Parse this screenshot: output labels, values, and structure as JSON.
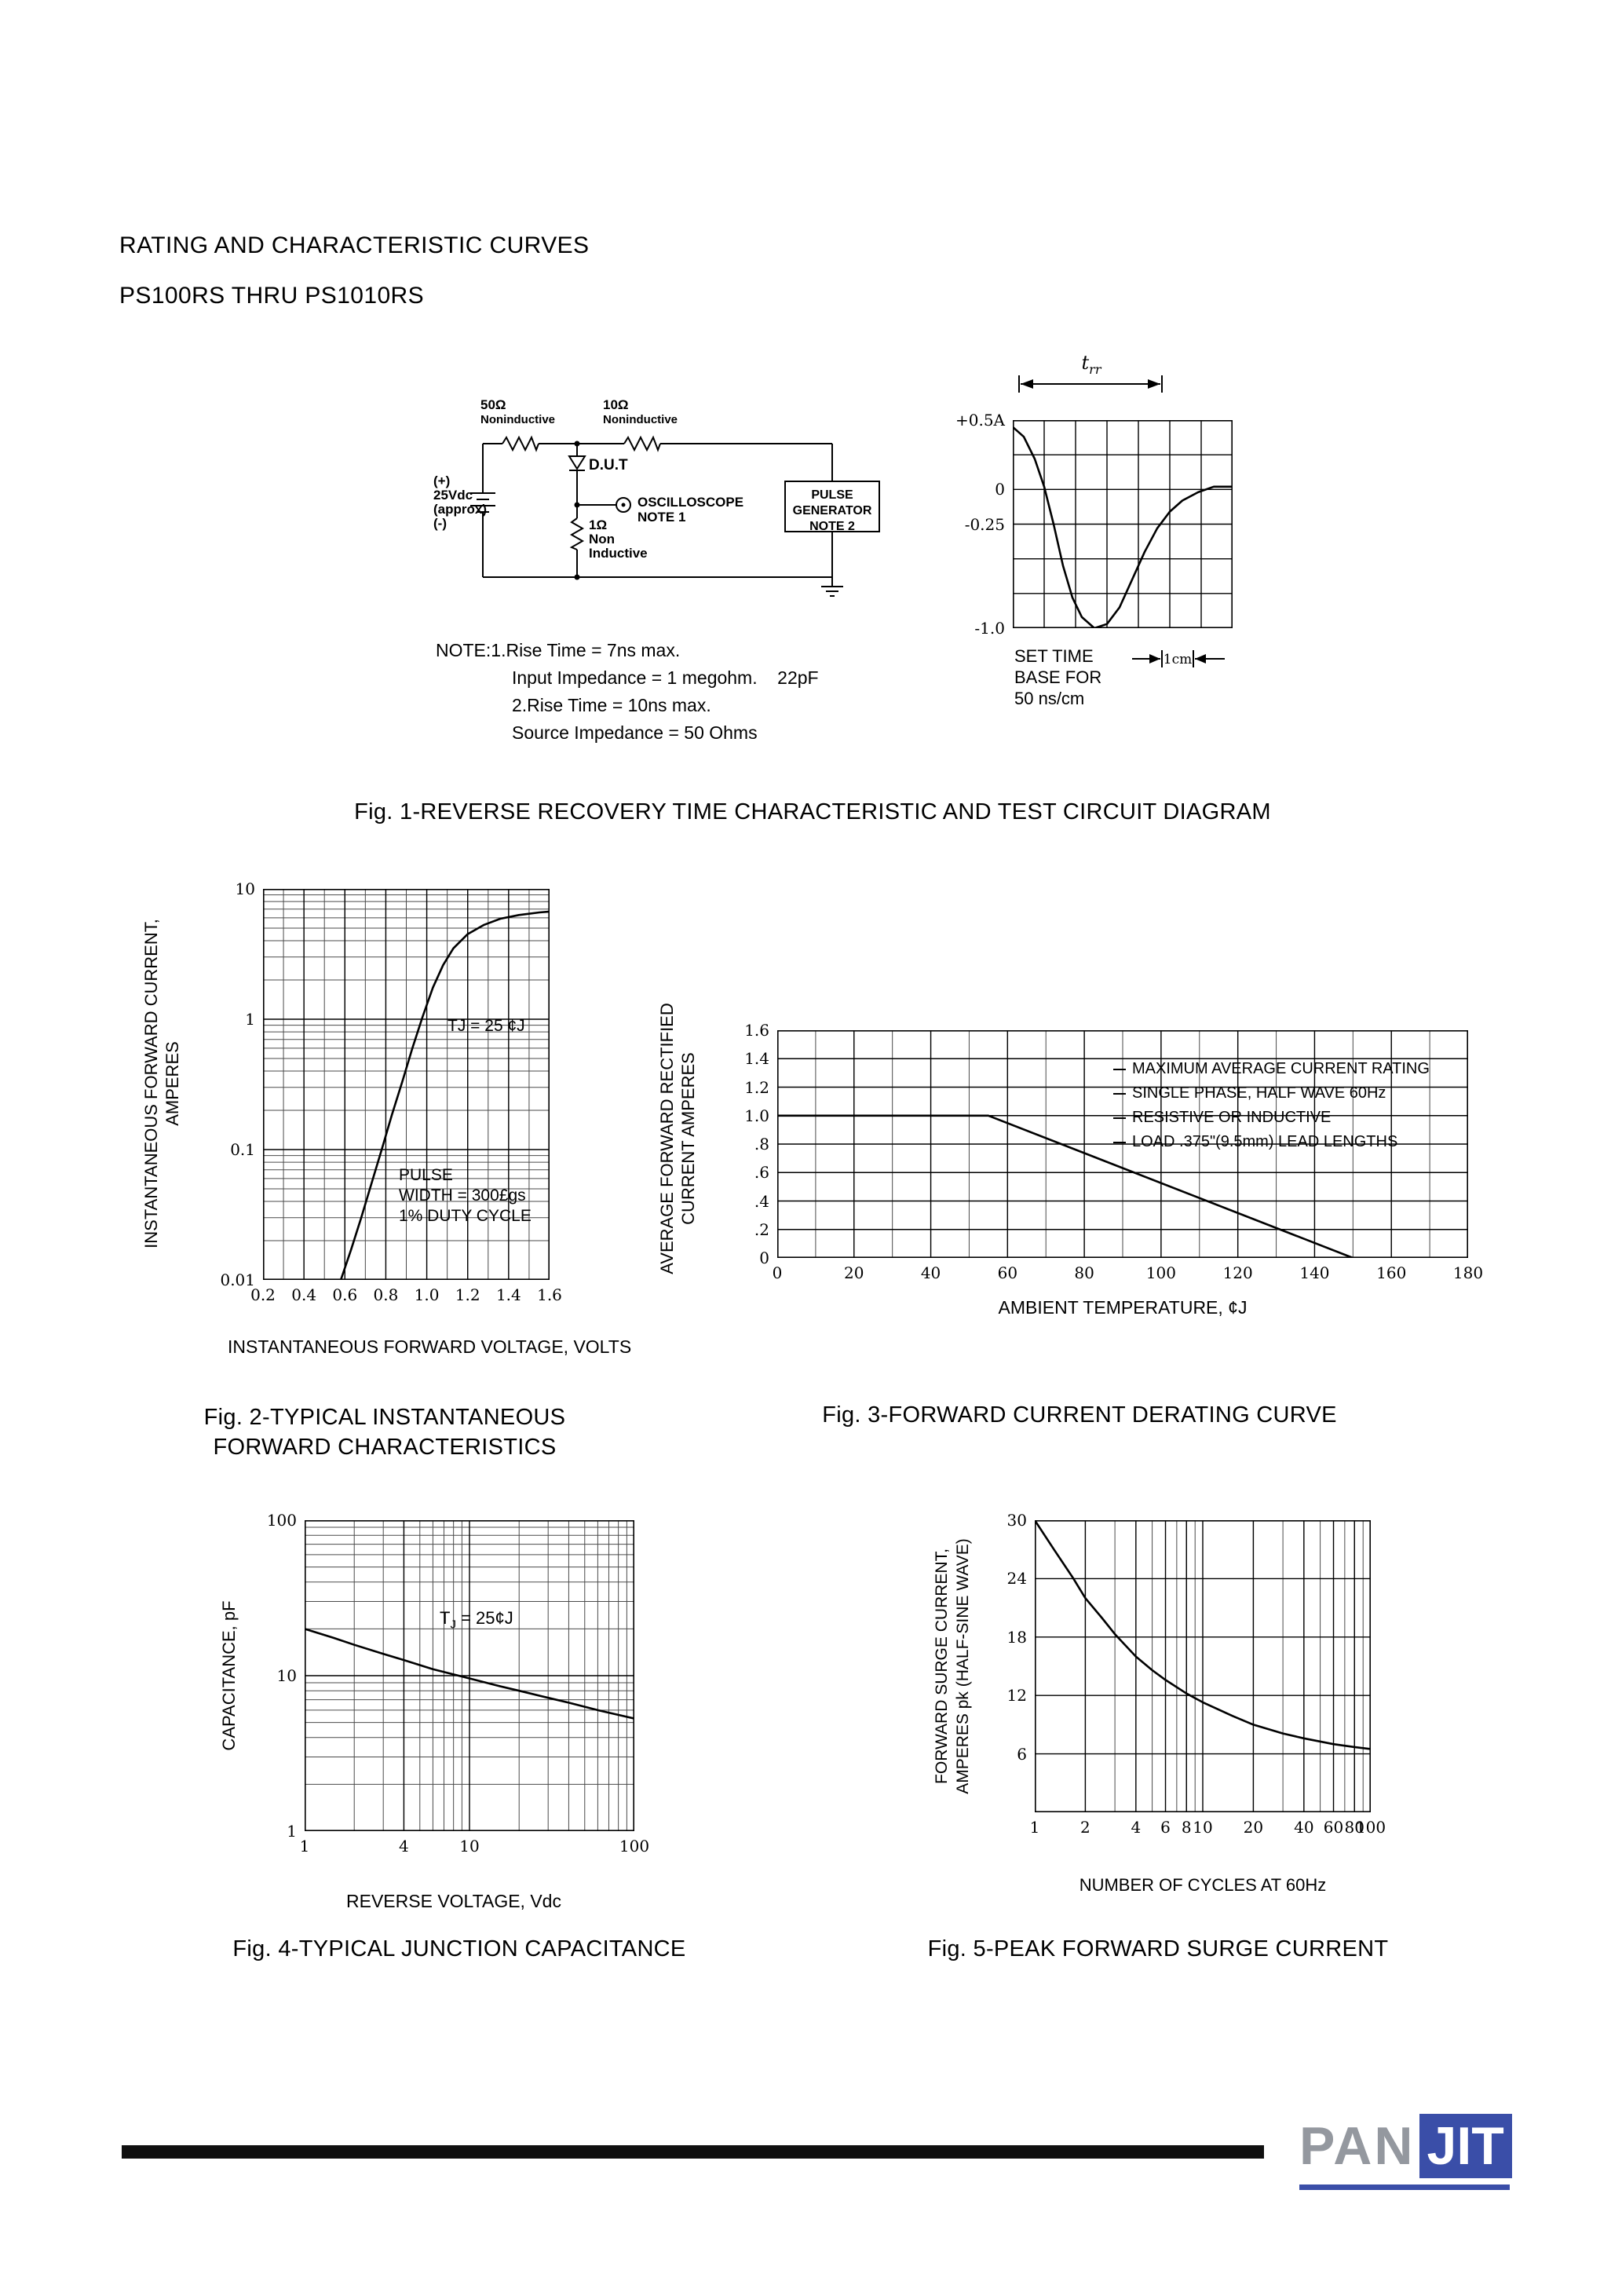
{
  "header": {
    "line1": "RATING AND CHARACTERISTIC CURVES",
    "line2": "PS100RS THRU PS1010RS"
  },
  "fig1": {
    "caption": "Fig. 1-REVERSE RECOVERY TIME CHARACTERISTIC AND TEST CIRCUIT DIAGRAM",
    "circuit": {
      "r50_value": "50Ω",
      "r50_type": "Noninductive",
      "r10_value": "10Ω",
      "r10_type": "Noninductive",
      "supply_plus": "(+)",
      "supply_voltage": "25Vdc",
      "supply_approx": "(approx)",
      "supply_minus": "(-)",
      "dut_label": "D.U.T",
      "r1_value": "1Ω",
      "r1_type_l1": "Non",
      "r1_type_l2": "Inductive",
      "scope_label": "OSCILLOSCOPE",
      "scope_note": "NOTE 1",
      "pulse_l1": "PULSE",
      "pulse_l2": "GENERATOR",
      "pulse_l3": "NOTE 2"
    },
    "notes": [
      "NOTE:1.Rise Time = 7ns max.",
      "Input Impedance = 1 megohm.    22pF",
      "2.Rise Time = 10ns max.",
      "Source Impedance = 50 Ohms"
    ],
    "scope": {
      "trr_base": "t",
      "trr_sub": "rr",
      "set_time_l1": "SET TIME",
      "set_time_l2": "BASE FOR",
      "set_time_l3": "50 ns/cm",
      "cm_label": "1cm"
    }
  },
  "footer": {
    "logo_pan": "PAN",
    "logo_jit": "JIT"
  },
  "chart_data": [
    {
      "id": "scope",
      "type": "line",
      "xscale": "linear",
      "yscale": "linear",
      "xlim": [
        0,
        7
      ],
      "ylim": [
        -1,
        0.5
      ],
      "xticks": [
        {
          "v": 0
        },
        {
          "v": 1
        },
        {
          "v": 2
        },
        {
          "v": 3
        },
        {
          "v": 4
        },
        {
          "v": 5
        },
        {
          "v": 6
        },
        {
          "v": 7
        }
      ],
      "yticks": [
        {
          "v": 0.5,
          "label": "+0.5A"
        },
        {
          "v": 0.25
        },
        {
          "v": 0,
          "label": "0"
        },
        {
          "v": -0.25,
          "label": "-0.25"
        },
        {
          "v": -0.5
        },
        {
          "v": -0.75
        },
        {
          "v": -1,
          "label": "-1.0"
        }
      ],
      "series": [
        {
          "name": "reverse-recovery-current",
          "points": [
            [
              0,
              0.45
            ],
            [
              0.35,
              0.38
            ],
            [
              0.7,
              0.22
            ],
            [
              1.0,
              0.02
            ],
            [
              1.3,
              -0.25
            ],
            [
              1.6,
              -0.55
            ],
            [
              1.9,
              -0.78
            ],
            [
              2.2,
              -0.92
            ],
            [
              2.6,
              -1.0
            ],
            [
              3.0,
              -0.97
            ],
            [
              3.4,
              -0.85
            ],
            [
              3.8,
              -0.65
            ],
            [
              4.2,
              -0.45
            ],
            [
              4.6,
              -0.28
            ],
            [
              5.0,
              -0.16
            ],
            [
              5.4,
              -0.08
            ],
            [
              5.9,
              -0.02
            ],
            [
              6.4,
              0.02
            ],
            [
              7,
              0.02
            ]
          ]
        }
      ]
    },
    {
      "id": "fig2",
      "type": "line",
      "caption_l1": "Fig. 2-TYPICAL INSTANTANEOUS",
      "caption_l2": "FORWARD CHARACTERISTICS",
      "xlabel": "INSTANTANEOUS FORWARD VOLTAGE, VOLTS",
      "ylabel_l1": "INSTANTANEOUS FORWARD CURRENT,",
      "ylabel_l2": "AMPERES",
      "xscale": "linear",
      "yscale": "log",
      "xlim": [
        0.2,
        1.6
      ],
      "ylim": [
        0.01,
        10
      ],
      "xminor_step": 0.1,
      "xticks": [
        {
          "v": 0.2,
          "label": "0.2"
        },
        {
          "v": 0.4,
          "label": "0.4"
        },
        {
          "v": 0.6,
          "label": "0.6"
        },
        {
          "v": 0.8,
          "label": "0.8"
        },
        {
          "v": 1.0,
          "label": "1.0"
        },
        {
          "v": 1.2,
          "label": "1.2"
        },
        {
          "v": 1.4,
          "label": "1.4"
        },
        {
          "v": 1.6,
          "label": "1.6"
        }
      ],
      "yticks": [
        {
          "v": 10,
          "label": "10"
        },
        {
          "v": 1,
          "label": "1"
        },
        {
          "v": 0.1,
          "label": "0.1"
        },
        {
          "v": 0.01,
          "label": "0.01"
        }
      ],
      "annotations": {
        "tj": "TJ = 25 ¢J",
        "pulse_l1": "PULSE",
        "pulse_l2": "WIDTH = 300£gs",
        "pulse_l3": "1% DUTY CYCLE"
      },
      "series": [
        {
          "name": "instantaneous-forward-current",
          "points": [
            [
              0.58,
              0.01
            ],
            [
              0.63,
              0.017
            ],
            [
              0.68,
              0.03
            ],
            [
              0.73,
              0.055
            ],
            [
              0.78,
              0.1
            ],
            [
              0.83,
              0.185
            ],
            [
              0.88,
              0.33
            ],
            [
              0.93,
              0.6
            ],
            [
              0.98,
              1.05
            ],
            [
              1.03,
              1.75
            ],
            [
              1.08,
              2.6
            ],
            [
              1.13,
              3.5
            ],
            [
              1.2,
              4.5
            ],
            [
              1.28,
              5.3
            ],
            [
              1.36,
              5.9
            ],
            [
              1.45,
              6.3
            ],
            [
              1.55,
              6.6
            ],
            [
              1.6,
              6.7
            ]
          ]
        }
      ]
    },
    {
      "id": "fig3",
      "type": "line",
      "caption": "Fig. 3-FORWARD CURRENT DERATING CURVE",
      "xlabel": "AMBIENT TEMPERATURE, ¢J",
      "ylabel_l1": "AVERAGE FORWARD RECTIFIED",
      "ylabel_l2": "CURRENT AMPERES",
      "xscale": "linear",
      "yscale": "linear",
      "xlim": [
        0,
        180
      ],
      "ylim": [
        0,
        1.6
      ],
      "xminor_step": 10,
      "xticks": [
        {
          "v": 0,
          "label": "0"
        },
        {
          "v": 20,
          "label": "20"
        },
        {
          "v": 40,
          "label": "40"
        },
        {
          "v": 60,
          "label": "60"
        },
        {
          "v": 80,
          "label": "80"
        },
        {
          "v": 100,
          "label": "100"
        },
        {
          "v": 120,
          "label": "120"
        },
        {
          "v": 140,
          "label": "140"
        },
        {
          "v": 160,
          "label": "160"
        },
        {
          "v": 180,
          "label": "180"
        }
      ],
      "yticks": [
        {
          "v": 1.6,
          "label": "1.6"
        },
        {
          "v": 1.4,
          "label": "1.4"
        },
        {
          "v": 1.2,
          "label": "1.2"
        },
        {
          "v": 1.0,
          "label": "1.0"
        },
        {
          "v": 0.8,
          "label": ".8"
        },
        {
          "v": 0.6,
          "label": ".6"
        },
        {
          "v": 0.4,
          "label": ".4"
        },
        {
          "v": 0.2,
          "label": ".2"
        },
        {
          "v": 0,
          "label": "0"
        }
      ],
      "legend": [
        "MAXIMUM AVERAGE CURRENT RATING",
        "SINGLE PHASE, HALF WAVE 60Hz",
        "RESISTIVE OR INDUCTIVE",
        "LOAD .375\"(9.5mm) LEAD LENGTHS"
      ],
      "series": [
        {
          "name": "derating-curve",
          "points": [
            [
              0,
              1.0
            ],
            [
              55,
              1.0
            ],
            [
              150,
              0
            ]
          ]
        }
      ]
    },
    {
      "id": "fig4",
      "type": "line",
      "caption": "Fig. 4-TYPICAL JUNCTION CAPACITANCE",
      "xlabel": "REVERSE VOLTAGE, Vdc",
      "ylabel": "CAPACITANCE, pF",
      "xscale": "log",
      "yscale": "log",
      "xlim": [
        1,
        100
      ],
      "ylim": [
        1,
        100
      ],
      "xticks": [
        {
          "v": 1,
          "label": "1"
        },
        {
          "v": 4,
          "label": "4"
        },
        {
          "v": 10,
          "label": "10"
        },
        {
          "v": 100,
          "label": "100"
        }
      ],
      "yticks": [
        {
          "v": 100,
          "label": "100"
        },
        {
          "v": 10,
          "label": "10"
        },
        {
          "v": 1,
          "label": "1"
        }
      ],
      "annotations": {
        "tj_base": "T",
        "tj_sub": "J",
        "tj_rest": " = 25¢J"
      },
      "series": [
        {
          "name": "junction-capacitance",
          "points": [
            [
              1,
              20
            ],
            [
              1.5,
              17.5
            ],
            [
              2,
              15.8
            ],
            [
              3,
              13.8
            ],
            [
              4,
              12.6
            ],
            [
              6,
              11
            ],
            [
              10,
              9.6
            ],
            [
              15,
              8.6
            ],
            [
              20,
              8
            ],
            [
              30,
              7.2
            ],
            [
              40,
              6.7
            ],
            [
              60,
              6
            ],
            [
              100,
              5.3
            ]
          ]
        }
      ]
    },
    {
      "id": "fig5",
      "type": "line",
      "caption": "Fig. 5-PEAK FORWARD SURGE CURRENT",
      "xlabel": "NUMBER OF CYCLES AT 60Hz",
      "ylabel_l1": "FORWARD SURGE CURRENT,",
      "ylabel_l2": "AMPERES pk (HALF-SINE WAVE)",
      "xscale": "log",
      "yscale": "linear",
      "xlim": [
        1,
        100
      ],
      "ylim": [
        0,
        30
      ],
      "xticks": [
        {
          "v": 1,
          "label": "1"
        },
        {
          "v": 2,
          "label": "2"
        },
        {
          "v": 4,
          "label": "4"
        },
        {
          "v": 6,
          "label": "6"
        },
        {
          "v": 8,
          "label": "8"
        },
        {
          "v": 10,
          "label": "10"
        },
        {
          "v": 20,
          "label": "20"
        },
        {
          "v": 40,
          "label": "40"
        },
        {
          "v": 60,
          "label": "60"
        },
        {
          "v": 80,
          "label": "80"
        },
        {
          "v": 100,
          "label": "100"
        }
      ],
      "yticks": [
        {
          "v": 30,
          "label": "30"
        },
        {
          "v": 24,
          "label": "24"
        },
        {
          "v": 18,
          "label": "18"
        },
        {
          "v": 12,
          "label": "12"
        },
        {
          "v": 6,
          "label": "6"
        }
      ],
      "series": [
        {
          "name": "peak-forward-surge-current",
          "points": [
            [
              1,
              30
            ],
            [
              1.3,
              27
            ],
            [
              1.7,
              24
            ],
            [
              2,
              22
            ],
            [
              2.5,
              20
            ],
            [
              3,
              18.3
            ],
            [
              4,
              16
            ],
            [
              5,
              14.6
            ],
            [
              6,
              13.6
            ],
            [
              8,
              12.2
            ],
            [
              10,
              11.3
            ],
            [
              15,
              9.9
            ],
            [
              20,
              9
            ],
            [
              30,
              8.1
            ],
            [
              40,
              7.6
            ],
            [
              60,
              7
            ],
            [
              80,
              6.7
            ],
            [
              100,
              6.5
            ]
          ]
        }
      ]
    }
  ]
}
